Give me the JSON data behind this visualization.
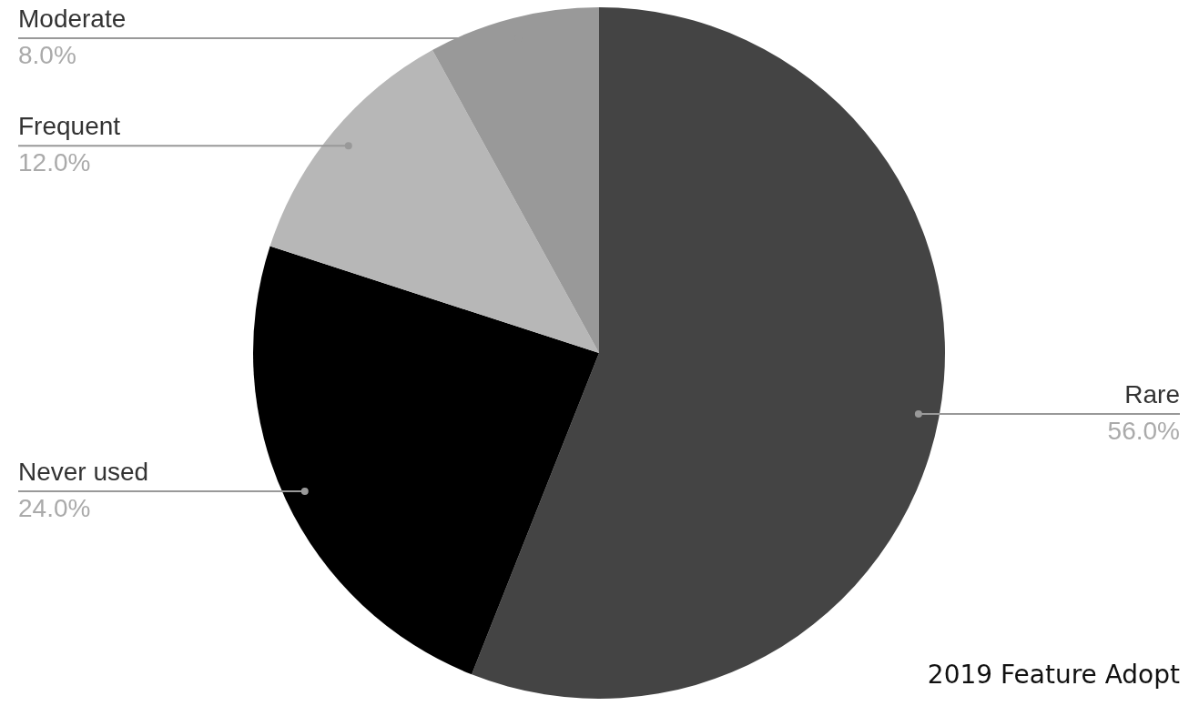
{
  "chart_data": {
    "type": "pie",
    "categories": [
      "Rare",
      "Never used",
      "Frequent",
      "Moderate"
    ],
    "values": [
      56,
      24,
      12,
      8
    ],
    "colors": [
      "#444444",
      "#000000",
      "#b7b7b7",
      "#999999"
    ],
    "value_labels": [
      "56.0%",
      "24.0%",
      "12.0%",
      "8.0%"
    ],
    "legend": false,
    "annotations": [
      "2019 Feature Adopt"
    ]
  }
}
